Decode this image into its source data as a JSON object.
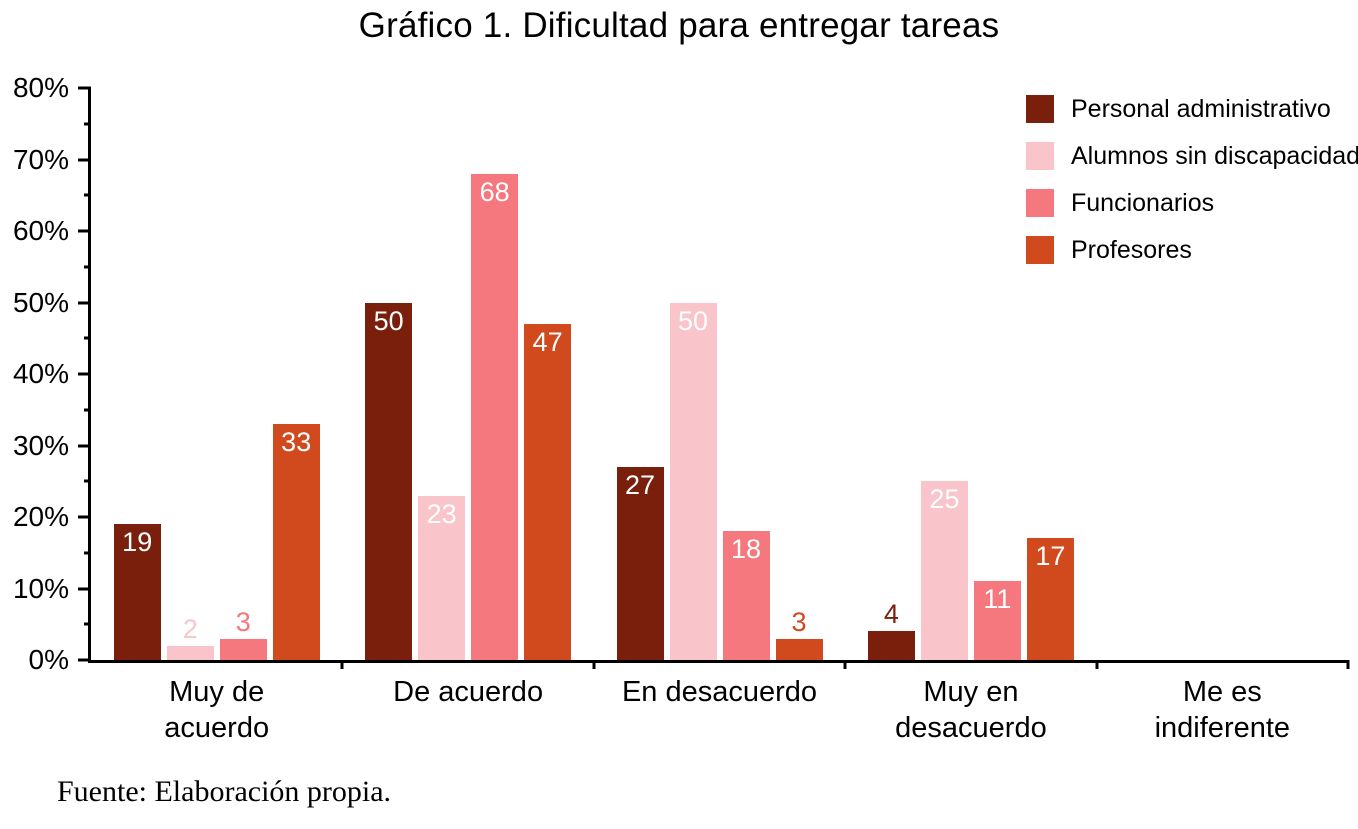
{
  "title": "Gráfico 1. Dificultad para entregar tareas",
  "source_note": "Fuente: Elaboración propia.",
  "chart_data": {
    "type": "bar",
    "title": "Gráfico 1. Dificultad para entregar tareas",
    "categories": [
      "Muy de\nacuerdo",
      "De acuerdo",
      "En desacuerdo",
      "Muy en\ndesacuerdo",
      "Me es\nindiferente"
    ],
    "series": [
      {
        "name": "Personal administrativo",
        "color": "#7B1F0D",
        "values": [
          19,
          50,
          27,
          4,
          0
        ]
      },
      {
        "name": "Alumnos sin discapacidad",
        "color": "#F9C5CB",
        "values": [
          2,
          23,
          50,
          25,
          0
        ]
      },
      {
        "name": "Funcionarios",
        "color": "#F4787D",
        "values": [
          3,
          68,
          18,
          11,
          0
        ]
      },
      {
        "name": "Profesores",
        "color": "#D14A1E",
        "values": [
          33,
          47,
          3,
          17,
          0
        ]
      }
    ],
    "xlabel": "",
    "ylabel": "",
    "ylim": [
      0,
      80
    ],
    "ytick_step": 10,
    "ytick_minor_step": 5,
    "ytick_suffix": "%",
    "grid": false,
    "legend_position": "top-right",
    "value_label_inside_threshold": 10
  }
}
